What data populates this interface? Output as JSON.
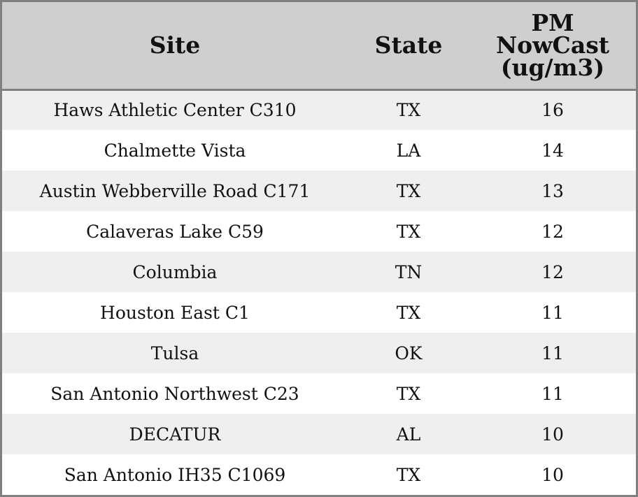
{
  "chart_data": {
    "type": "table",
    "columns": [
      "Site",
      "State",
      "PM NowCast (ug/m3)"
    ],
    "header_lines": {
      "site": [
        "Site"
      ],
      "state": [
        "State"
      ],
      "pm": [
        "PM",
        "NowCast",
        "(ug/m3)"
      ]
    },
    "rows": [
      {
        "site": "Haws Athletic Center C310",
        "state": "TX",
        "pm": 16
      },
      {
        "site": "Chalmette Vista",
        "state": "LA",
        "pm": 14
      },
      {
        "site": "Austin Webberville Road C171",
        "state": "TX",
        "pm": 13
      },
      {
        "site": "Calaveras Lake C59",
        "state": "TX",
        "pm": 12
      },
      {
        "site": "Columbia",
        "state": "TN",
        "pm": 12
      },
      {
        "site": "Houston East C1",
        "state": "TX",
        "pm": 11
      },
      {
        "site": "Tulsa",
        "state": "OK",
        "pm": 11
      },
      {
        "site": "San Antonio Northwest C23",
        "state": "TX",
        "pm": 11
      },
      {
        "site": "DECATUR",
        "state": "AL",
        "pm": 10
      },
      {
        "site": "San Antonio IH35 C1069",
        "state": "TX",
        "pm": 10
      }
    ]
  },
  "colors": {
    "header_bg": "#cfcfcf",
    "row_odd_bg": "#efefef",
    "row_even_bg": "#ffffff",
    "border": "#808080",
    "text": "#111111"
  }
}
